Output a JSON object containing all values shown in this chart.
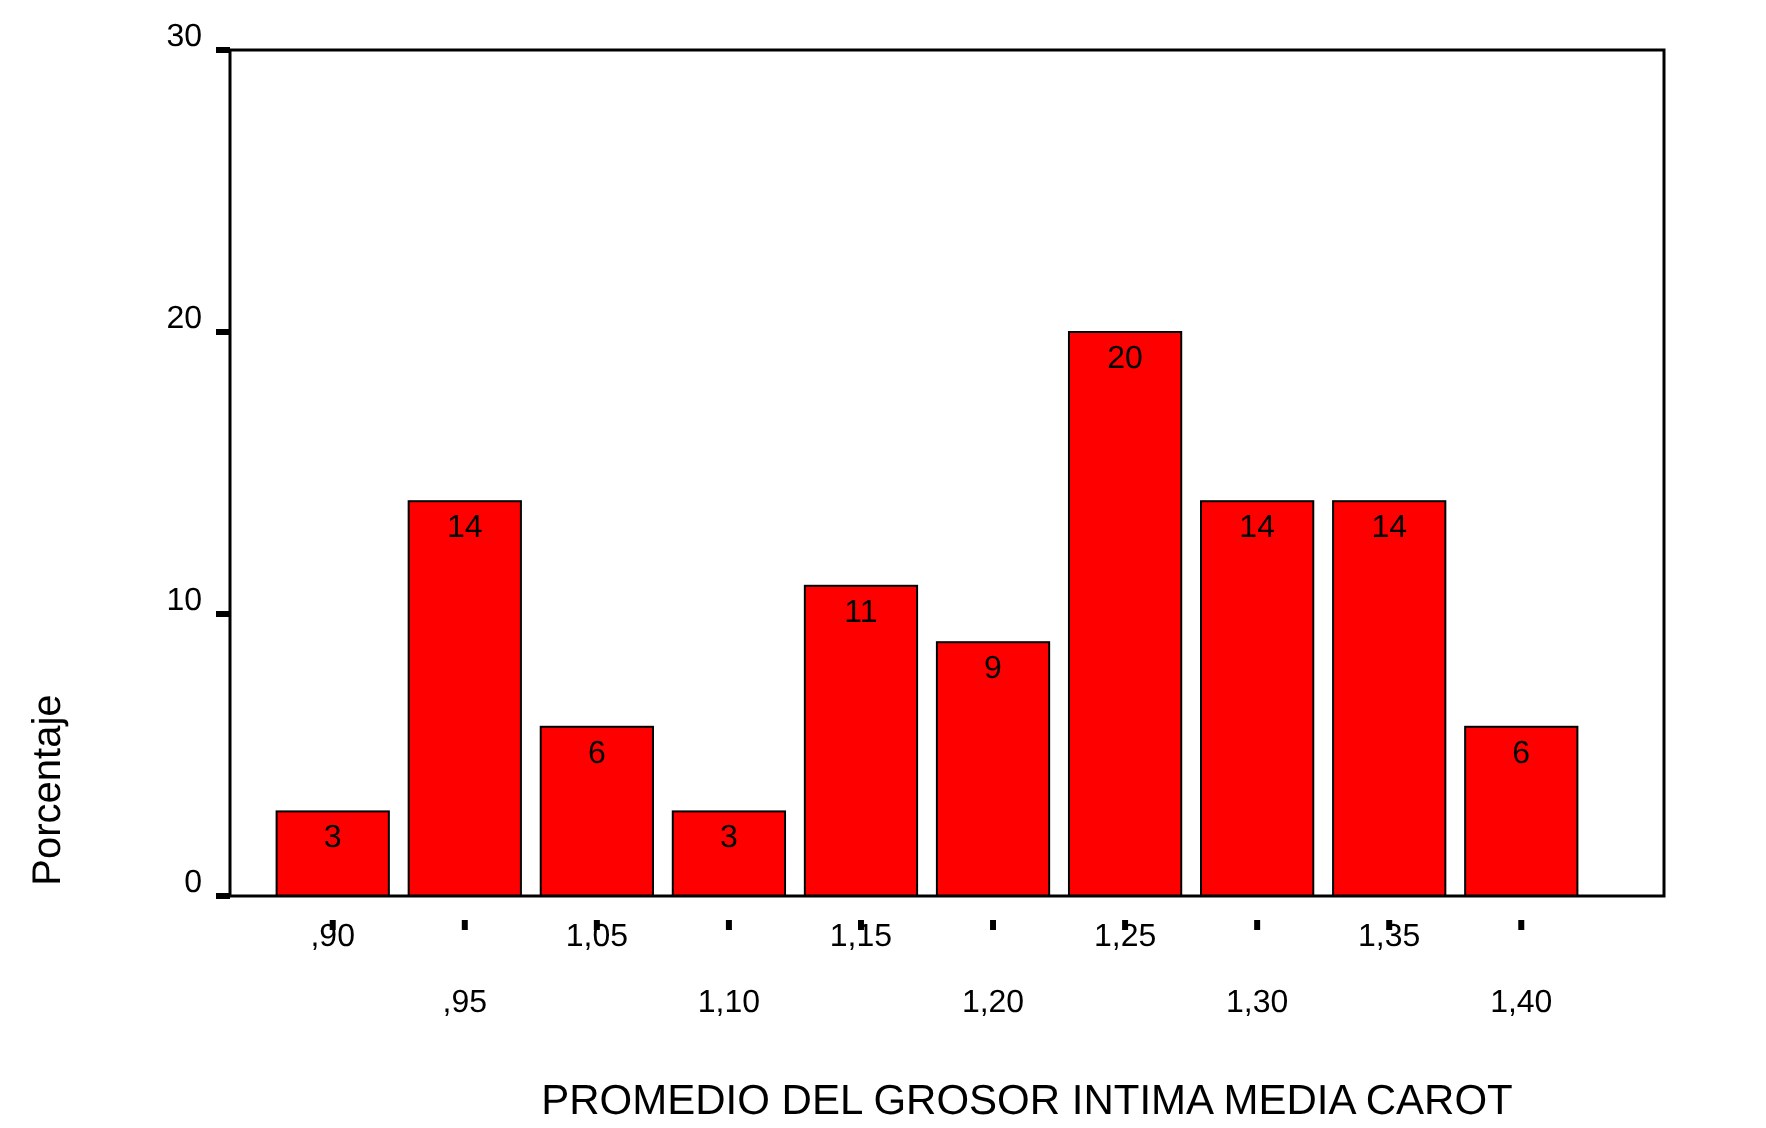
{
  "chart_data": {
    "type": "bar",
    "xlabel": "PROMEDIO DEL GROSOR INTIMA MEDIA CAROT",
    "ylabel": "Porcentaje",
    "categories": [
      ",90",
      ",95",
      "1,05",
      "1,10",
      "1,15",
      "1,20",
      "1,25",
      "1,30",
      "1,35",
      "1,40"
    ],
    "values": [
      3,
      14,
      6,
      3,
      11,
      9,
      20,
      14,
      14,
      6
    ],
    "color": "#ff0000",
    "ylim": [
      0,
      30
    ],
    "yticks": [
      0,
      10,
      20,
      30
    ],
    "grid": false,
    "data_labels": true
  }
}
